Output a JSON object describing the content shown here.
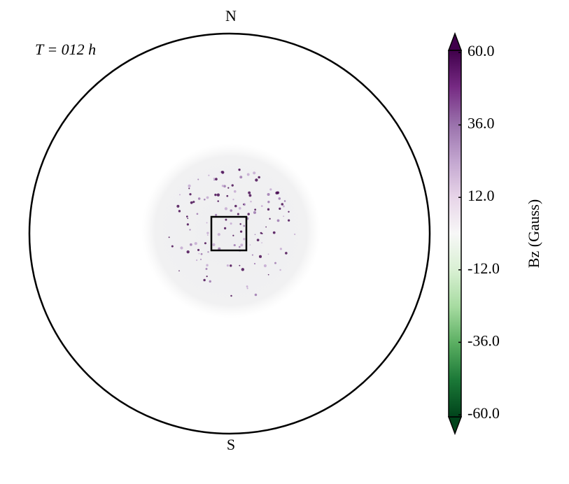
{
  "chart_data": {
    "type": "colormap",
    "annotation": "T = 012 h",
    "top_label": "N",
    "bottom_label": "S",
    "colorbar_label": "Bz (Gauss)",
    "clim": [
      -60,
      60
    ],
    "colorbar_ticks": [
      {
        "value": 60,
        "label": "60.0"
      },
      {
        "value": 36,
        "label": "36.0"
      },
      {
        "value": 12,
        "label": "12.0"
      },
      {
        "value": -12,
        "label": "-12.0"
      },
      {
        "value": -36,
        "label": "-36.0"
      },
      {
        "value": -60,
        "label": "-60.0"
      }
    ],
    "colormap": [
      "#00441b",
      "#1b7837",
      "#5aae61",
      "#a6dba0",
      "#d9f0d3",
      "#f7f7f7",
      "#e7d4e8",
      "#c2a5cf",
      "#9970ab",
      "#762a83",
      "#40004b"
    ]
  }
}
